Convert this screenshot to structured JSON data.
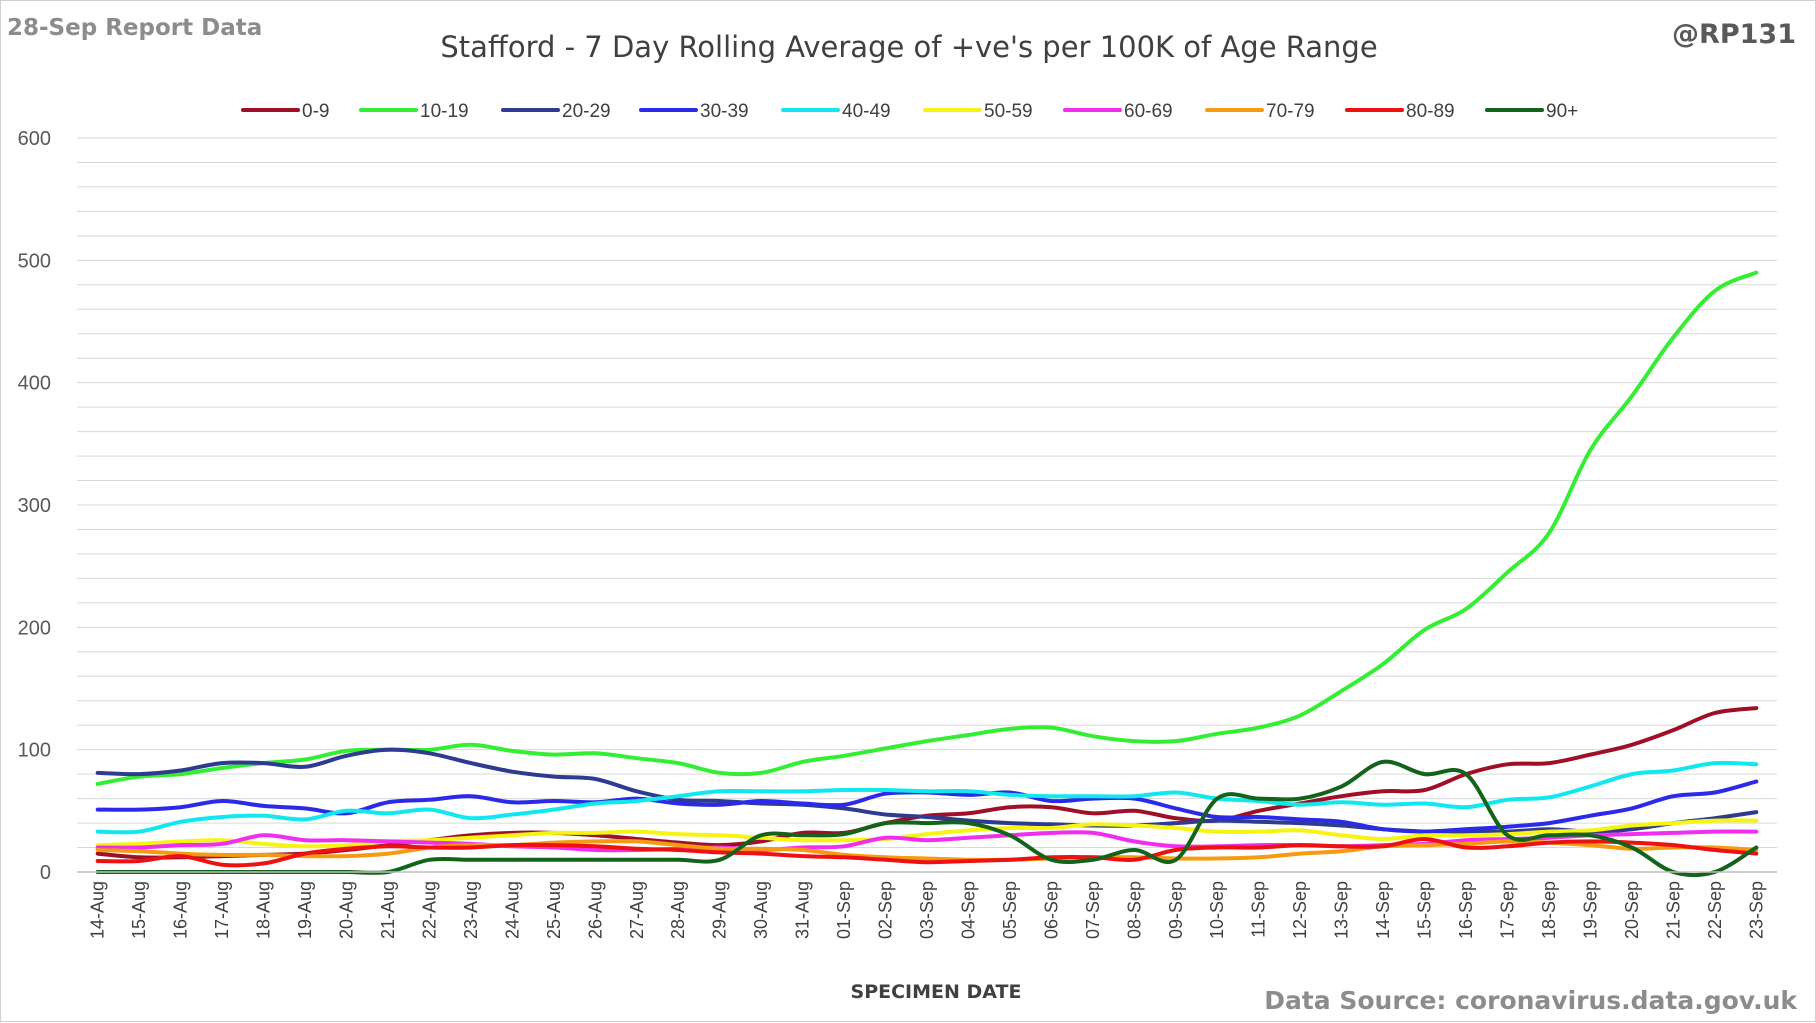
{
  "header": {
    "report_label": "28-Sep Report Data",
    "handle": "@RP131",
    "source": "Data Source: coronavirus.data.gov.uk"
  },
  "chart_data": {
    "type": "line",
    "title": "Stafford - 7 Day Rolling Average of +ve's per 100K of Age Range",
    "xlabel": "SPECIMEN DATE",
    "ylabel": "",
    "ylim": [
      0,
      600
    ],
    "yticks": [
      0,
      100,
      200,
      300,
      400,
      500,
      600
    ],
    "grid": true,
    "legend_position": "top",
    "categories": [
      "14-Aug",
      "15-Aug",
      "16-Aug",
      "17-Aug",
      "18-Aug",
      "19-Aug",
      "20-Aug",
      "21-Aug",
      "22-Aug",
      "23-Aug",
      "24-Aug",
      "25-Aug",
      "26-Aug",
      "27-Aug",
      "28-Aug",
      "29-Aug",
      "30-Aug",
      "31-Aug",
      "01-Sep",
      "02-Sep",
      "03-Sep",
      "04-Sep",
      "05-Sep",
      "06-Sep",
      "07-Sep",
      "08-Sep",
      "09-Sep",
      "10-Sep",
      "11-Sep",
      "12-Sep",
      "13-Sep",
      "14-Sep",
      "15-Sep",
      "16-Sep",
      "17-Sep",
      "18-Sep",
      "19-Sep",
      "20-Sep",
      "21-Sep",
      "22-Sep",
      "23-Sep"
    ],
    "series": [
      {
        "name": "0-9",
        "color": "#a00f28",
        "values": [
          15,
          12,
          12,
          13,
          14,
          15,
          18,
          22,
          26,
          30,
          32,
          32,
          30,
          27,
          24,
          22,
          25,
          32,
          32,
          40,
          46,
          48,
          53,
          53,
          48,
          50,
          44,
          42,
          50,
          56,
          62,
          66,
          67,
          80,
          88,
          89,
          96,
          104,
          116,
          130,
          134
        ]
      },
      {
        "name": "10-19",
        "color": "#33ee33",
        "values": [
          72,
          78,
          80,
          85,
          89,
          92,
          99,
          100,
          100,
          104,
          99,
          96,
          97,
          93,
          89,
          81,
          81,
          90,
          95,
          101,
          107,
          112,
          117,
          118,
          111,
          107,
          107,
          113,
          118,
          128,
          148,
          170,
          198,
          215,
          245,
          277,
          345,
          389,
          437,
          475,
          490
        ]
      },
      {
        "name": "20-29",
        "color": "#2f3b90",
        "values": [
          81,
          80,
          83,
          89,
          89,
          86,
          95,
          100,
          97,
          89,
          82,
          78,
          76,
          66,
          59,
          58,
          56,
          55,
          52,
          47,
          45,
          42,
          40,
          39,
          38,
          38,
          40,
          42,
          41,
          40,
          38,
          35,
          33,
          33,
          33,
          35,
          33,
          35,
          40,
          44,
          49
        ]
      },
      {
        "name": "30-39",
        "color": "#2a2ae8",
        "values": [
          51,
          51,
          53,
          58,
          54,
          52,
          48,
          57,
          59,
          62,
          57,
          58,
          57,
          60,
          56,
          55,
          58,
          56,
          55,
          64,
          65,
          63,
          65,
          58,
          60,
          60,
          52,
          45,
          45,
          43,
          41,
          35,
          33,
          35,
          37,
          40,
          46,
          52,
          62,
          65,
          74
        ]
      },
      {
        "name": "40-49",
        "color": "#11e7ee",
        "values": [
          33,
          33,
          41,
          45,
          46,
          43,
          50,
          48,
          51,
          44,
          47,
          51,
          56,
          58,
          62,
          66,
          66,
          66,
          67,
          67,
          66,
          66,
          63,
          62,
          62,
          62,
          65,
          60,
          58,
          55,
          57,
          55,
          56,
          53,
          59,
          61,
          70,
          80,
          83,
          89,
          88
        ]
      },
      {
        "name": "50-59",
        "color": "#f5f511",
        "values": [
          22,
          23,
          25,
          26,
          23,
          21,
          22,
          25,
          26,
          28,
          30,
          32,
          32,
          33,
          31,
          30,
          28,
          26,
          26,
          27,
          31,
          34,
          36,
          36,
          39,
          38,
          36,
          33,
          33,
          34,
          30,
          27,
          30,
          30,
          31,
          33,
          34,
          38,
          40,
          42,
          42
        ]
      },
      {
        "name": "60-69",
        "color": "#f02ef0",
        "values": [
          20,
          20,
          22,
          23,
          30,
          26,
          26,
          25,
          24,
          23,
          21,
          20,
          18,
          18,
          19,
          20,
          18,
          20,
          21,
          28,
          26,
          28,
          30,
          32,
          32,
          25,
          21,
          21,
          22,
          22,
          21,
          22,
          23,
          26,
          27,
          28,
          30,
          31,
          32,
          33,
          33
        ]
      },
      {
        "name": "70-79",
        "color": "#f59a11",
        "values": [
          18,
          17,
          15,
          14,
          14,
          13,
          13,
          15,
          20,
          22,
          22,
          24,
          25,
          25,
          22,
          19,
          19,
          18,
          14,
          12,
          11,
          10,
          10,
          11,
          12,
          12,
          11,
          11,
          12,
          15,
          17,
          21,
          22,
          23,
          25,
          24,
          22,
          19,
          20,
          20,
          18
        ]
      },
      {
        "name": "80-89",
        "color": "#ee1111",
        "values": [
          9,
          9,
          13,
          6,
          7,
          15,
          19,
          21,
          20,
          20,
          22,
          22,
          21,
          19,
          18,
          16,
          15,
          13,
          12,
          10,
          8,
          9,
          10,
          12,
          12,
          10,
          18,
          20,
          20,
          22,
          21,
          21,
          27,
          20,
          21,
          24,
          25,
          24,
          22,
          18,
          15
        ]
      },
      {
        "name": "90+",
        "color": "#13631a",
        "values": [
          0,
          0,
          0,
          0,
          0,
          0,
          0,
          0,
          10,
          10,
          10,
          10,
          10,
          10,
          10,
          10,
          30,
          30,
          31,
          40,
          40,
          40,
          30,
          10,
          10,
          18,
          10,
          60,
          60,
          60,
          70,
          90,
          80,
          80,
          30,
          30,
          30,
          20,
          0,
          0,
          20
        ]
      }
    ]
  }
}
